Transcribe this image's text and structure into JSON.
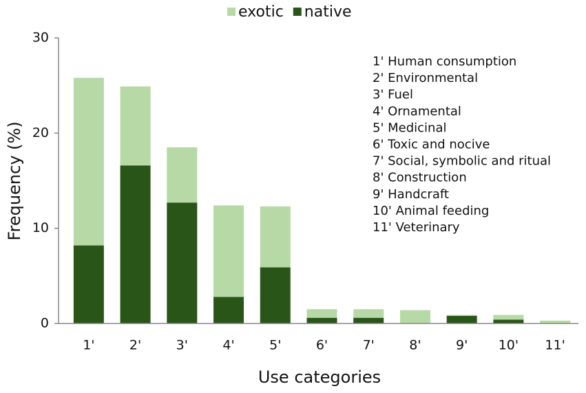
{
  "chart_data": {
    "type": "stacked_bar",
    "xlabel": "Use categories",
    "ylabel": "Frequency (%)",
    "categories": [
      "1'",
      "2'",
      "3'",
      "4'",
      "5'",
      "6'",
      "7'",
      "8'",
      "9'",
      "10'",
      "11'"
    ],
    "series": [
      {
        "name": "exotic",
        "color": "#b6d9a6",
        "values": [
          17.6,
          8.3,
          5.8,
          9.6,
          6.4,
          0.9,
          0.9,
          1.4,
          0.1,
          0.5,
          0.3
        ]
      },
      {
        "name": "native",
        "color": "#2a5519",
        "values": [
          8.2,
          16.6,
          12.7,
          2.8,
          5.9,
          0.6,
          0.6,
          0,
          0.8,
          0.4,
          0
        ]
      }
    ],
    "ylim": [
      0,
      30
    ],
    "yticks": [
      0,
      10,
      20,
      30
    ],
    "annotations": [
      "1' Human consumption",
      "2' Environmental",
      "3' Fuel",
      "4' Ornamental",
      "5' Medicinal",
      "6' Toxic and nocive",
      "7' Social, symbolic and ritual",
      "8' Construction",
      "9' Handcraft",
      "10' Animal feeding",
      "11' Veterinary"
    ]
  }
}
